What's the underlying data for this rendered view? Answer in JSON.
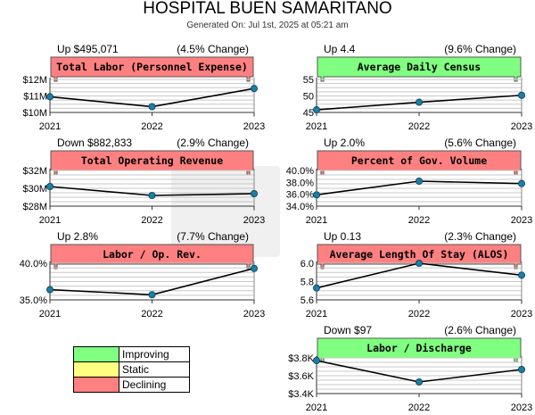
{
  "page": {
    "title": "HOSPITAL BUEN SAMARITANO",
    "subtitle": "Generated On: Jul 1st, 2025 at 05:21 am"
  },
  "colors": {
    "improving": "#80ff80",
    "static": "#ffff80",
    "declining": "#ff8080",
    "line": "#000000",
    "marker": "#1a7fa6"
  },
  "legend": {
    "items": [
      {
        "label": "Improving",
        "color": "#80ff80"
      },
      {
        "label": "Static",
        "color": "#ffff80"
      },
      {
        "label": "Declining",
        "color": "#ff8080"
      }
    ]
  },
  "chart_data": [
    {
      "type": "line",
      "title": "Total Labor (Personnel Expense)",
      "status": "declining",
      "change": "Up $495,071",
      "pct": "(4.5% Change)",
      "x": [
        "2021",
        "2022",
        "2023"
      ],
      "values": [
        10.95,
        10.35,
        11.45
      ],
      "ylim": [
        10,
        12
      ],
      "ticks": [
        10,
        11,
        12
      ],
      "tick_labels": [
        "$10M",
        "$11M",
        "$12M"
      ]
    },
    {
      "type": "line",
      "title": "Average Daily Census",
      "status": "improving",
      "change": "Up 4.4",
      "pct": "(9.6% Change)",
      "x": [
        "2021",
        "2022",
        "2023"
      ],
      "values": [
        45.8,
        48.1,
        50.2
      ],
      "ylim": [
        45,
        55
      ],
      "ticks": [
        45,
        50,
        55
      ],
      "tick_labels": [
        "45",
        "50",
        "55"
      ]
    },
    {
      "type": "line",
      "title": "Total Operating Revenue",
      "status": "declining",
      "change": "Down $882,833",
      "pct": "(2.9% Change)",
      "x": [
        "2021",
        "2022",
        "2023"
      ],
      "values": [
        30.2,
        29.2,
        29.4
      ],
      "ylim": [
        28,
        32
      ],
      "ticks": [
        28,
        30,
        32
      ],
      "tick_labels": [
        "$28M",
        "$30M",
        "$32M"
      ]
    },
    {
      "type": "line",
      "title": "Percent of Gov. Volume",
      "status": "declining",
      "change": "Up 2.0%",
      "pct": "(5.6% Change)",
      "x": [
        "2021",
        "2022",
        "2023"
      ],
      "values": [
        35.9,
        38.2,
        37.8
      ],
      "ylim": [
        34,
        40
      ],
      "ticks": [
        34,
        36,
        38,
        40
      ],
      "tick_labels": [
        "34.0%",
        "36.0%",
        "38.0%",
        "40.0%"
      ]
    },
    {
      "type": "line",
      "title": "Labor / Op. Rev.",
      "status": "declining",
      "change": "Up 2.8%",
      "pct": "(7.7% Change)",
      "x": [
        "2021",
        "2022",
        "2023"
      ],
      "values": [
        36.4,
        35.7,
        39.3
      ],
      "ylim": [
        35,
        40
      ],
      "ticks": [
        35,
        40
      ],
      "tick_labels": [
        "35.0%",
        "40.0%"
      ]
    },
    {
      "type": "line",
      "title": "Average Length Of Stay (ALOS)",
      "status": "declining",
      "change": "Up 0.13",
      "pct": "(2.3% Change)",
      "x": [
        "2021",
        "2022",
        "2023"
      ],
      "values": [
        5.73,
        6.0,
        5.87
      ],
      "ylim": [
        5.6,
        6.0
      ],
      "ticks": [
        5.6,
        5.8,
        6.0
      ],
      "tick_labels": [
        "5.6",
        "5.8",
        "6.0"
      ]
    },
    {
      "type": "line",
      "title": "Labor / Discharge",
      "status": "improving",
      "change": "Down $97",
      "pct": "(2.6% Change)",
      "x": [
        "2021",
        "2022",
        "2023"
      ],
      "values": [
        3.77,
        3.53,
        3.67
      ],
      "ylim": [
        3.4,
        3.8
      ],
      "ticks": [
        3.4,
        3.6,
        3.8
      ],
      "tick_labels": [
        "$3.4K",
        "$3.6K",
        "$3.8K"
      ]
    }
  ]
}
